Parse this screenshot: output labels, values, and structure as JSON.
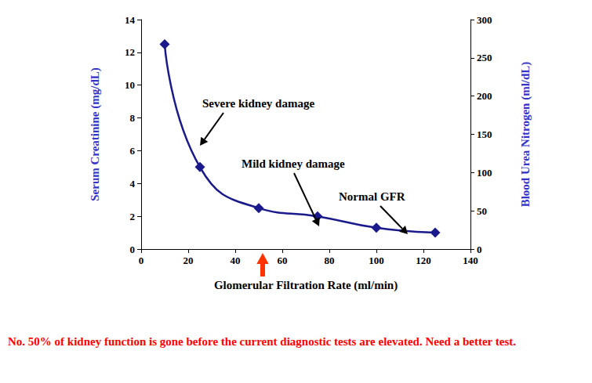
{
  "chart_data": {
    "type": "line",
    "x_label": "Glomerular Filtration Rate (ml/min)",
    "y_label": "Serum Creatinine (mg/dL)",
    "y2_label": "Blood Urea Nitrogen (ml/dL)",
    "x": [
      10,
      25,
      50,
      75,
      100,
      125
    ],
    "values": [
      12.5,
      5,
      2.5,
      2,
      1.3,
      1
    ],
    "color": "#1a1a8c",
    "marker": "diamond",
    "line_style": "smooth",
    "xlim": [
      0,
      140
    ],
    "xticks": [
      0,
      20,
      40,
      60,
      80,
      100,
      120,
      140
    ],
    "ylim": [
      0,
      14
    ],
    "yticks": [
      0,
      2,
      4,
      6,
      8,
      10,
      12,
      14
    ],
    "y2lim": [
      0,
      300
    ],
    "y2ticks": [
      0,
      50,
      100,
      150,
      200,
      250,
      300
    ],
    "grid": false,
    "annotations": [
      "Severe kidney damage",
      "Mild kidney damage",
      "Normal GFR"
    ],
    "note": "No.  50% of kidney function is gone before the current diagnostic tests are elevated. Need a better test."
  }
}
